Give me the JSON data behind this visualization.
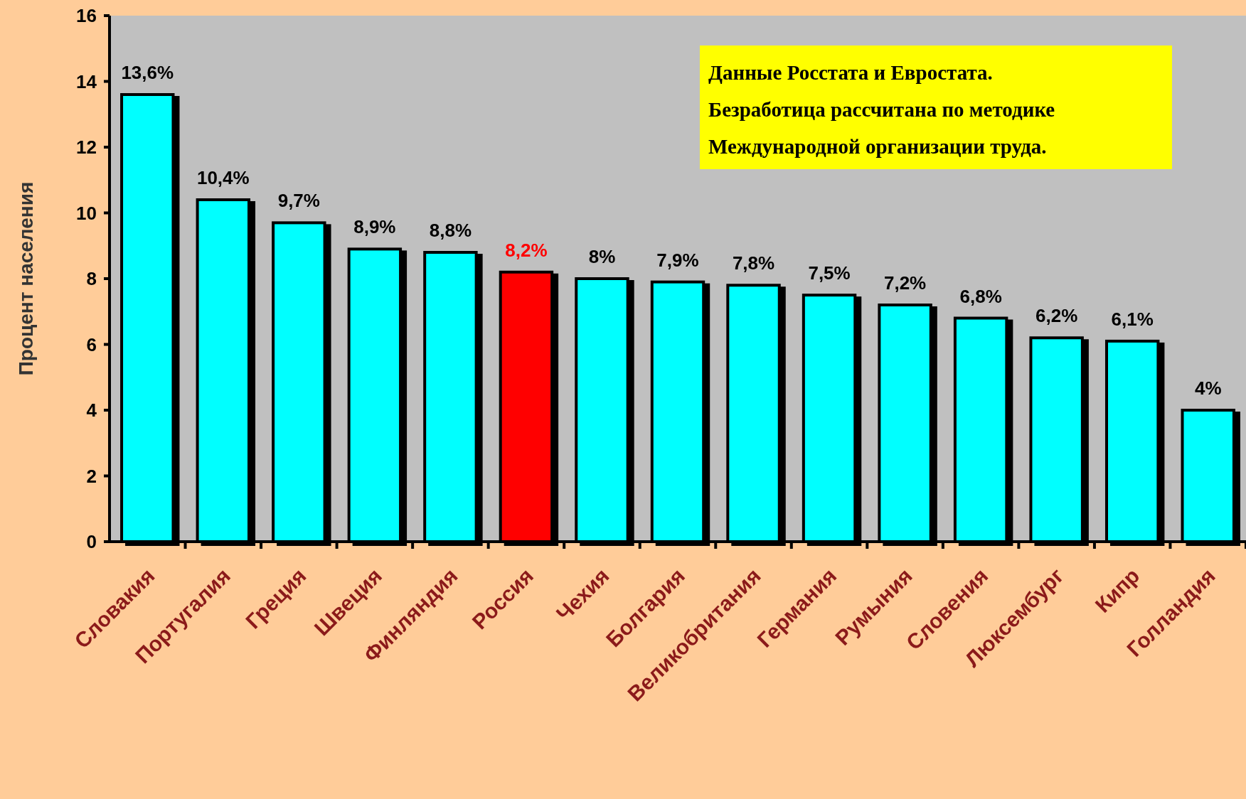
{
  "chart_data": {
    "type": "bar",
    "ylabel": "Процент населения",
    "categories": [
      "Словакия",
      "Португалия",
      "Греция",
      "Швеция",
      "Финляндия",
      "Россия",
      "Чехия",
      "Болгария",
      "Великобритания",
      "Германия",
      "Румыния",
      "Словения",
      "Люксембург",
      "Кипр",
      "Голландия"
    ],
    "values": [
      13.6,
      10.4,
      9.7,
      8.9,
      8.8,
      8.2,
      8,
      7.9,
      7.8,
      7.5,
      7.2,
      6.8,
      6.2,
      6.1,
      4
    ],
    "value_labels": [
      "13,6%",
      "10,4%",
      "9,7%",
      "8,9%",
      "8,8%",
      "8,2%",
      "8%",
      "7,9%",
      "7,8%",
      "7,5%",
      "7,2%",
      "6,8%",
      "6,2%",
      "6,1%",
      "4%"
    ],
    "colors": [
      "#00ffff",
      "#00ffff",
      "#00ffff",
      "#00ffff",
      "#00ffff",
      "#ff0000",
      "#00ffff",
      "#00ffff",
      "#00ffff",
      "#00ffff",
      "#00ffff",
      "#00ffff",
      "#00ffff",
      "#00ffff",
      "#00ffff"
    ],
    "ylim": [
      0,
      16
    ],
    "yticks": [
      0,
      2,
      4,
      6,
      8,
      10,
      12,
      14,
      16
    ],
    "grid": false,
    "annotations": [
      "Данные Росстата и Евростата.",
      "Безработица рассчитана по методике",
      "Международной  организации труда."
    ]
  }
}
